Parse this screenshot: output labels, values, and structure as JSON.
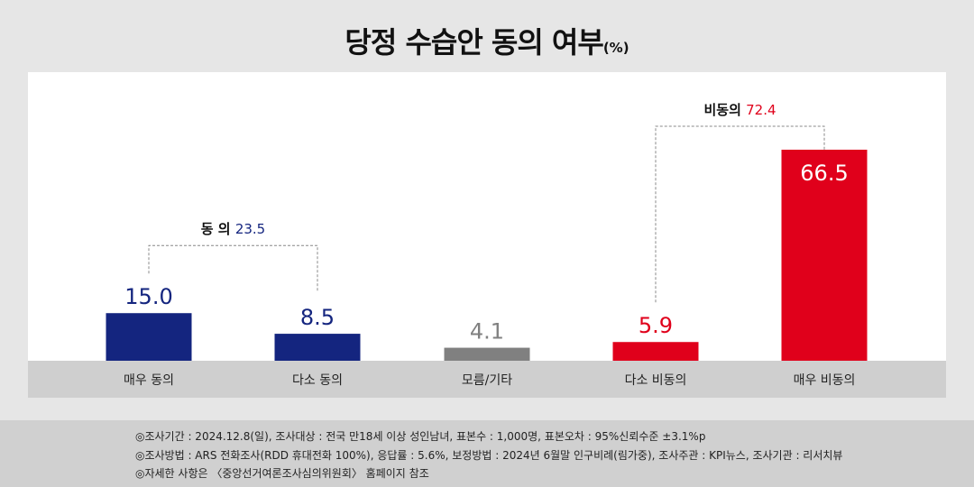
{
  "title": "당정 수습안 동의 여부",
  "title_unit": "(%)",
  "chart_data": {
    "type": "bar",
    "title": "당정 수습안 동의 여부(%)",
    "categories": [
      "매우 동의",
      "다소 동의",
      "모름/기타",
      "다소 비동의",
      "매우 비동의"
    ],
    "values": [
      15.0,
      8.5,
      4.1,
      5.9,
      66.5
    ],
    "value_labels": [
      "15.0",
      "8.5",
      "4.1",
      "5.9",
      "66.5"
    ],
    "colors": [
      "#14257f",
      "#14257f",
      "#808080",
      "#e0001b",
      "#e0001b"
    ],
    "ylim": [
      0,
      70
    ],
    "grid": false,
    "groups": [
      {
        "label": "동 의",
        "value": "23.5",
        "from": 0,
        "to": 1,
        "color": "#14257f"
      },
      {
        "label": "비동의",
        "value": "72.4",
        "from": 3,
        "to": 4,
        "color": "#e0001b"
      }
    ]
  },
  "footer": {
    "notes": [
      "◎조사기간 : 2024.12.8(일), 조사대상 : 전국 만18세 이상 성인남녀, 표본수 : 1,000명, 표본오차 : 95%신뢰수준 ±3.1%p",
      "◎조사방법 : ARS 전화조사(RDD 휴대전화 100%), 응답률 : 5.6%, 보정방법 : 2024년 6월말 인구비례(림가중), 조사주관 : KPI뉴스, 조사기관 : 리서치뷰",
      "◎자세한 사항은 〈중앙선거여론조사심의위원회〉 홈페이지 참조"
    ]
  }
}
